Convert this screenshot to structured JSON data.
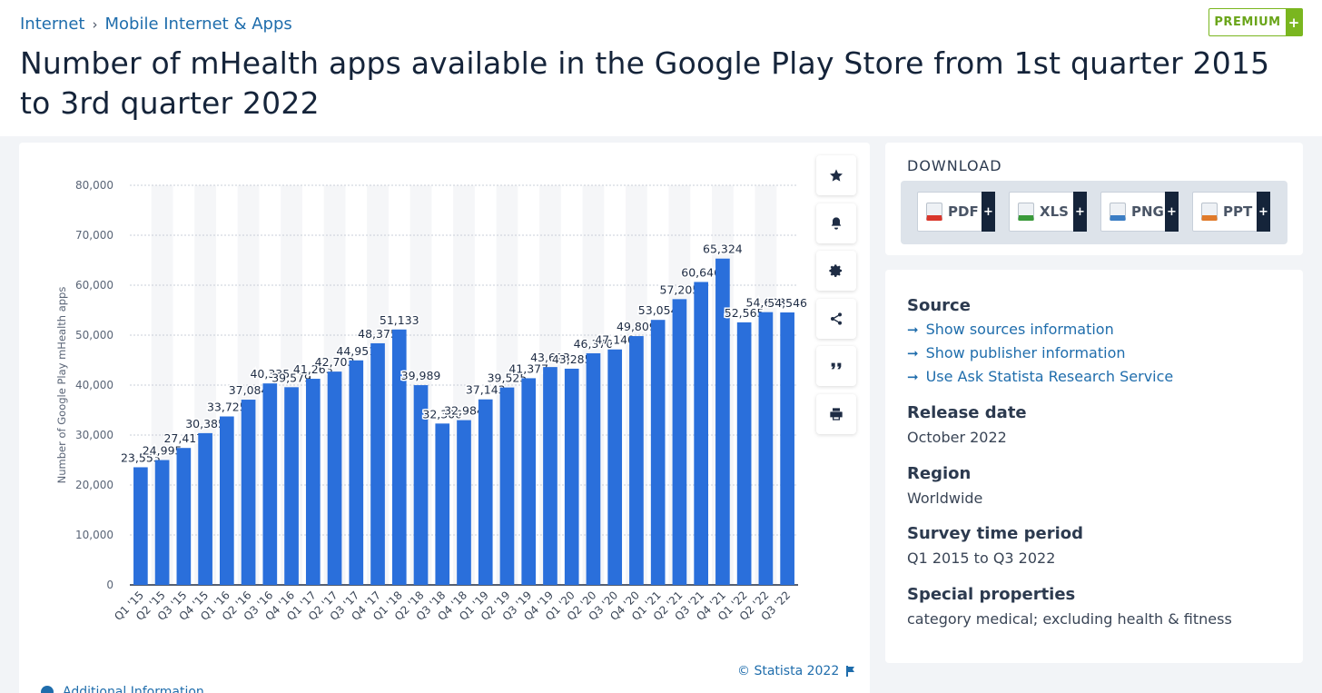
{
  "breadcrumb": {
    "items": [
      "Internet",
      "Mobile Internet & Apps"
    ],
    "separator": "›"
  },
  "premium": {
    "label": "PREMIUM",
    "plus": "+"
  },
  "page_title": "Number of mHealth apps available in the Google Play Store from 1st quarter 2015 to 3rd quarter 2022",
  "chart_data": {
    "type": "bar",
    "ylabel": "Number of Google Play mHealth apps",
    "xlabel": "",
    "ylim": [
      0,
      80000
    ],
    "yticks": [
      0,
      10000,
      20000,
      30000,
      40000,
      50000,
      60000,
      70000,
      80000
    ],
    "ytick_labels": [
      "0",
      "10,000",
      "20,000",
      "30,000",
      "40,000",
      "50,000",
      "60,000",
      "70,000",
      "80,000"
    ],
    "categories": [
      "Q1 '15",
      "Q2 '15",
      "Q3 '15",
      "Q4 '15",
      "Q1 '16",
      "Q2 '16",
      "Q3 '16",
      "Q4 '16",
      "Q1 '17",
      "Q2 '17",
      "Q3 '17",
      "Q4 '17",
      "Q1 '18",
      "Q2 '18",
      "Q3 '18",
      "Q4 '18",
      "Q1 '19",
      "Q2 '19",
      "Q3 '19",
      "Q4 '19",
      "Q1 '20",
      "Q2 '20",
      "Q3 '20",
      "Q4 '20",
      "Q1 '21",
      "Q2 '21",
      "Q3 '21",
      "Q4 '21",
      "Q1 '22",
      "Q2 '22",
      "Q3 '22"
    ],
    "values": [
      23553,
      24995,
      27417,
      30385,
      33725,
      37084,
      40335,
      39579,
      41263,
      42703,
      44951,
      48375,
      51133,
      39989,
      32306,
      32984,
      37143,
      39525,
      41377,
      43613,
      43285,
      46370,
      47140,
      49809,
      53054,
      57205,
      60646,
      65324,
      52565,
      54603,
      54546
    ],
    "value_labels": [
      "23,553",
      "24,995",
      "27,417",
      "30,385",
      "33,725",
      "37,084",
      "40,335",
      "39,579",
      "41,263",
      "42,703",
      "44,951",
      "48,375",
      "51,133",
      "39,989",
      "32,306",
      "32,984",
      "37,143",
      "39,525",
      "41,377",
      "43,613",
      "43,285",
      "46,370",
      "47,140",
      "49,809",
      "53,054",
      "57,205",
      "60,646",
      "65,324",
      "52,565",
      "54,603",
      "54,546"
    ],
    "grid": true,
    "bar_color": "#2a6fdb"
  },
  "chart_tools": {
    "icons": [
      "star-icon",
      "bell-icon",
      "gear-icon",
      "share-icon",
      "quote-icon",
      "print-icon"
    ]
  },
  "copyright": "© Statista 2022",
  "additional_info": "Additional Information",
  "download": {
    "title": "DOWNLOAD",
    "buttons": [
      {
        "label": "PDF",
        "color": "#d9362b",
        "plus": "+"
      },
      {
        "label": "XLS",
        "color": "#3a9a3a",
        "plus": "+"
      },
      {
        "label": "PNG",
        "color": "#3b7dc4",
        "plus": "+"
      },
      {
        "label": "PPT",
        "color": "#e07a2a",
        "plus": "+"
      }
    ]
  },
  "info": {
    "source_heading": "Source",
    "source_links": [
      "Show sources information",
      "Show publisher information",
      "Use Ask Statista Research Service"
    ],
    "release_heading": "Release date",
    "release_value": "October 2022",
    "region_heading": "Region",
    "region_value": "Worldwide",
    "survey_heading": "Survey time period",
    "survey_value": "Q1 2015 to Q3 2022",
    "special_heading": "Special properties",
    "special_value": "category medical; excluding health & fitness"
  }
}
